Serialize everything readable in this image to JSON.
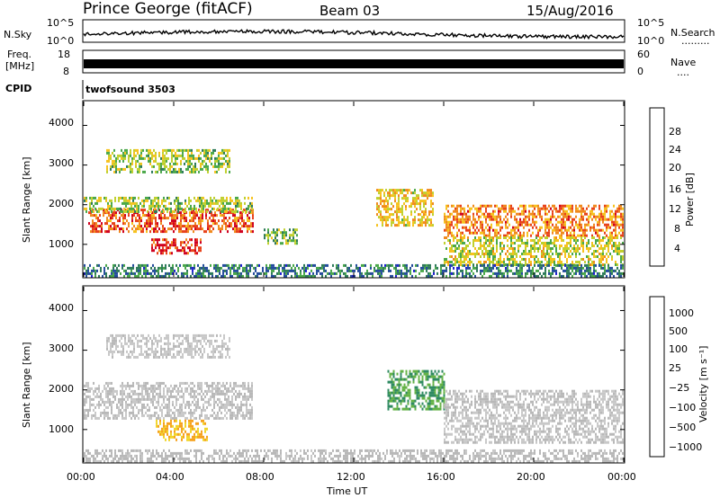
{
  "header": {
    "station": "Prince George (fitACF)",
    "beam": "Beam 03",
    "date": "15/Aug/2016"
  },
  "noise_panel": {
    "left_label": "N.Sky",
    "right_label": "N.Search",
    "right_dots": ".........",
    "left_ticks": [
      "10^5",
      "10^0"
    ],
    "right_ticks": [
      "10^5",
      "10^0"
    ]
  },
  "freq_panel": {
    "left_label_line1": "Freq.",
    "left_label_line2": "[MHz]",
    "right_label": "Nave",
    "right_dots": "....",
    "left_ticks": [
      "18",
      "8"
    ],
    "right_ticks": [
      "60",
      "0"
    ]
  },
  "cpid": {
    "label": "CPID",
    "value": "twofsound 3503"
  },
  "power_panel": {
    "ylabel": "Slant Range [km]",
    "yticks": [
      "4000",
      "3000",
      "2000",
      "1000"
    ],
    "colorbar_label": "Power [dB]",
    "colorbar_ticks": [
      "28",
      "24",
      "20",
      "16",
      "12",
      "8",
      "4"
    ],
    "colorbar_colors": [
      "#d0001f",
      "#e8421a",
      "#f08a1e",
      "#f6c21e",
      "#c0d02e",
      "#4aa84a",
      "#2e7a5a",
      "#244c9c",
      "#1f1fd0"
    ]
  },
  "velocity_panel": {
    "ylabel": "Slant Range [km]",
    "yticks": [
      "4000",
      "3000",
      "2000",
      "1000"
    ],
    "colorbar_label": "Velocity [m s⁻¹]",
    "colorbar_ticks": [
      "1000",
      "500",
      "100",
      "25",
      "−25",
      "−100",
      "−500",
      "−1000"
    ],
    "colorbar_colors": [
      "#2a3e9e",
      "#2a66b0",
      "#2f8a62",
      "#64b246",
      "#b8b8b8",
      "#c8c8c8",
      "#f0d52a",
      "#f6a21e",
      "#ef6a1c",
      "#d8201c"
    ]
  },
  "x_axis": {
    "ticks": [
      "00:00",
      "04:00",
      "08:00",
      "12:00",
      "16:00",
      "20:00",
      "00:00"
    ],
    "label": "Time UT"
  },
  "chart_data": {
    "type": "heatmap",
    "title": "Prince George (fitACF) Beam 03 15/Aug/2016",
    "xlabel": "Time UT",
    "ylabel": "Slant Range [km]",
    "xlim": [
      0,
      24
    ],
    "ylim": [
      180,
      4600
    ],
    "panels": [
      {
        "name": "Power",
        "unit": "dB",
        "colorbar_range": [
          0,
          30
        ],
        "echo_regions": [
          {
            "t": [
              0.2,
              7.5
            ],
            "range_km": [
              1300,
              1900
            ],
            "value": 24
          },
          {
            "t": [
              0.0,
              7.5
            ],
            "range_km": [
              1800,
              2200
            ],
            "value": 14
          },
          {
            "t": [
              3.0,
              5.2
            ],
            "range_km": [
              750,
              1150
            ],
            "value": 26
          },
          {
            "t": [
              1.0,
              6.5
            ],
            "range_km": [
              2800,
              3400
            ],
            "value": 14
          },
          {
            "t": [
              8.0,
              9.5
            ],
            "range_km": [
              1000,
              1400
            ],
            "value": 12
          },
          {
            "t": [
              13.0,
              15.5
            ],
            "range_km": [
              1500,
              2400
            ],
            "value": 18
          },
          {
            "t": [
              16.0,
              24.0
            ],
            "range_km": [
              1200,
              2000
            ],
            "value": 22
          },
          {
            "t": [
              16.0,
              24.0
            ],
            "range_km": [
              500,
              1200
            ],
            "value": 16
          },
          {
            "t": [
              0.0,
              24.0
            ],
            "range_km": [
              180,
              500
            ],
            "value": 8
          }
        ]
      },
      {
        "name": "Velocity",
        "unit": "m s-1",
        "colorbar_range": [
          -1000,
          1000
        ],
        "echo_regions": [
          {
            "t": [
              0.0,
              7.5
            ],
            "range_km": [
              1300,
              2200
            ],
            "value": 0
          },
          {
            "t": [
              3.2,
              5.5
            ],
            "range_km": [
              750,
              1250
            ],
            "value": -400
          },
          {
            "t": [
              1.0,
              6.5
            ],
            "range_km": [
              2800,
              3400
            ],
            "value": -60
          },
          {
            "t": [
              13.5,
              16.0
            ],
            "range_km": [
              1500,
              2500
            ],
            "value": 400
          },
          {
            "t": [
              16.0,
              24.0
            ],
            "range_km": [
              700,
              2000
            ],
            "value": 0
          },
          {
            "t": [
              0.0,
              24.0
            ],
            "range_km": [
              180,
              500
            ],
            "value": 60
          }
        ]
      }
    ]
  }
}
